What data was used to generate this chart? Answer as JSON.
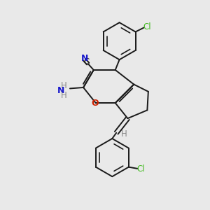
{
  "background_color": "#e9e9e9",
  "bond_color": "#1a1a1a",
  "atom_colors": {
    "N": "#1a1acc",
    "O": "#cc2200",
    "Cl": "#44bb22",
    "H": "#888888",
    "C": "#1a1a1a"
  },
  "figsize": [
    3.0,
    3.0
  ],
  "dpi": 100
}
